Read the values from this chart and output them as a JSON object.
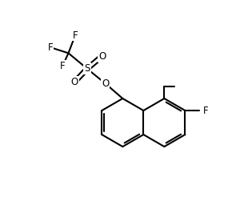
{
  "background_color": "#ffffff",
  "line_color": "#000000",
  "bond_width": 1.5,
  "font_size": 8.5,
  "figsize": [
    2.9,
    2.46
  ],
  "dpi": 100,
  "xlim": [
    0,
    10
  ],
  "ylim": [
    0,
    8.5
  ]
}
